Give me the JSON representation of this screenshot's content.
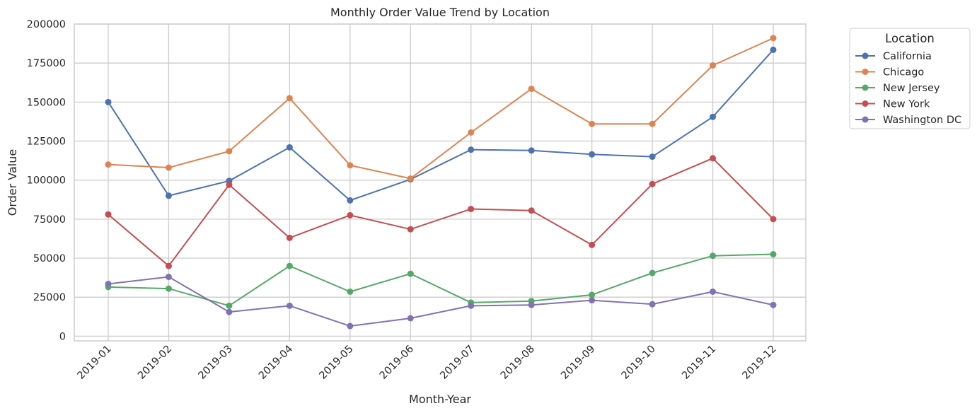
{
  "chart_data": {
    "type": "line",
    "title": "Monthly Order Value Trend by Location",
    "xlabel": "Month-Year",
    "ylabel": "Order Value",
    "categories": [
      "2019-01",
      "2019-02",
      "2019-03",
      "2019-04",
      "2019-05",
      "2019-06",
      "2019-07",
      "2019-08",
      "2019-09",
      "2019-10",
      "2019-11",
      "2019-12"
    ],
    "ylim": [
      -3000,
      200000
    ],
    "yticks": [
      0,
      25000,
      50000,
      75000,
      100000,
      125000,
      150000,
      175000,
      200000
    ],
    "ytick_labels": [
      "0",
      "25000",
      "50000",
      "75000",
      "100000",
      "125000",
      "150000",
      "175000",
      "200000"
    ],
    "grid": true,
    "legend": {
      "title": "Location",
      "placement": "outside-right-top"
    },
    "series": [
      {
        "name": "California",
        "color": "#4c72b0",
        "values": [
          150000,
          90000,
          99500,
          121000,
          87000,
          100500,
          119500,
          119000,
          116500,
          115000,
          140500,
          183500
        ]
      },
      {
        "name": "Chicago",
        "color": "#dd8452",
        "values": [
          110000,
          108000,
          118500,
          152500,
          109500,
          101000,
          130500,
          158500,
          136000,
          136000,
          173500,
          191000
        ]
      },
      {
        "name": "New Jersey",
        "color": "#55a868",
        "values": [
          31500,
          30500,
          19500,
          45000,
          28500,
          40000,
          21500,
          22500,
          26500,
          40500,
          51500,
          52500
        ]
      },
      {
        "name": "New York",
        "color": "#c44e52",
        "values": [
          78000,
          45000,
          97000,
          63000,
          77500,
          68500,
          81500,
          80500,
          58500,
          97500,
          114000,
          75000
        ]
      },
      {
        "name": "Washington DC",
        "color": "#8172b3",
        "values": [
          33500,
          38000,
          15500,
          19500,
          6500,
          11500,
          19500,
          20000,
          23000,
          20500,
          28500,
          20000
        ]
      }
    ]
  }
}
